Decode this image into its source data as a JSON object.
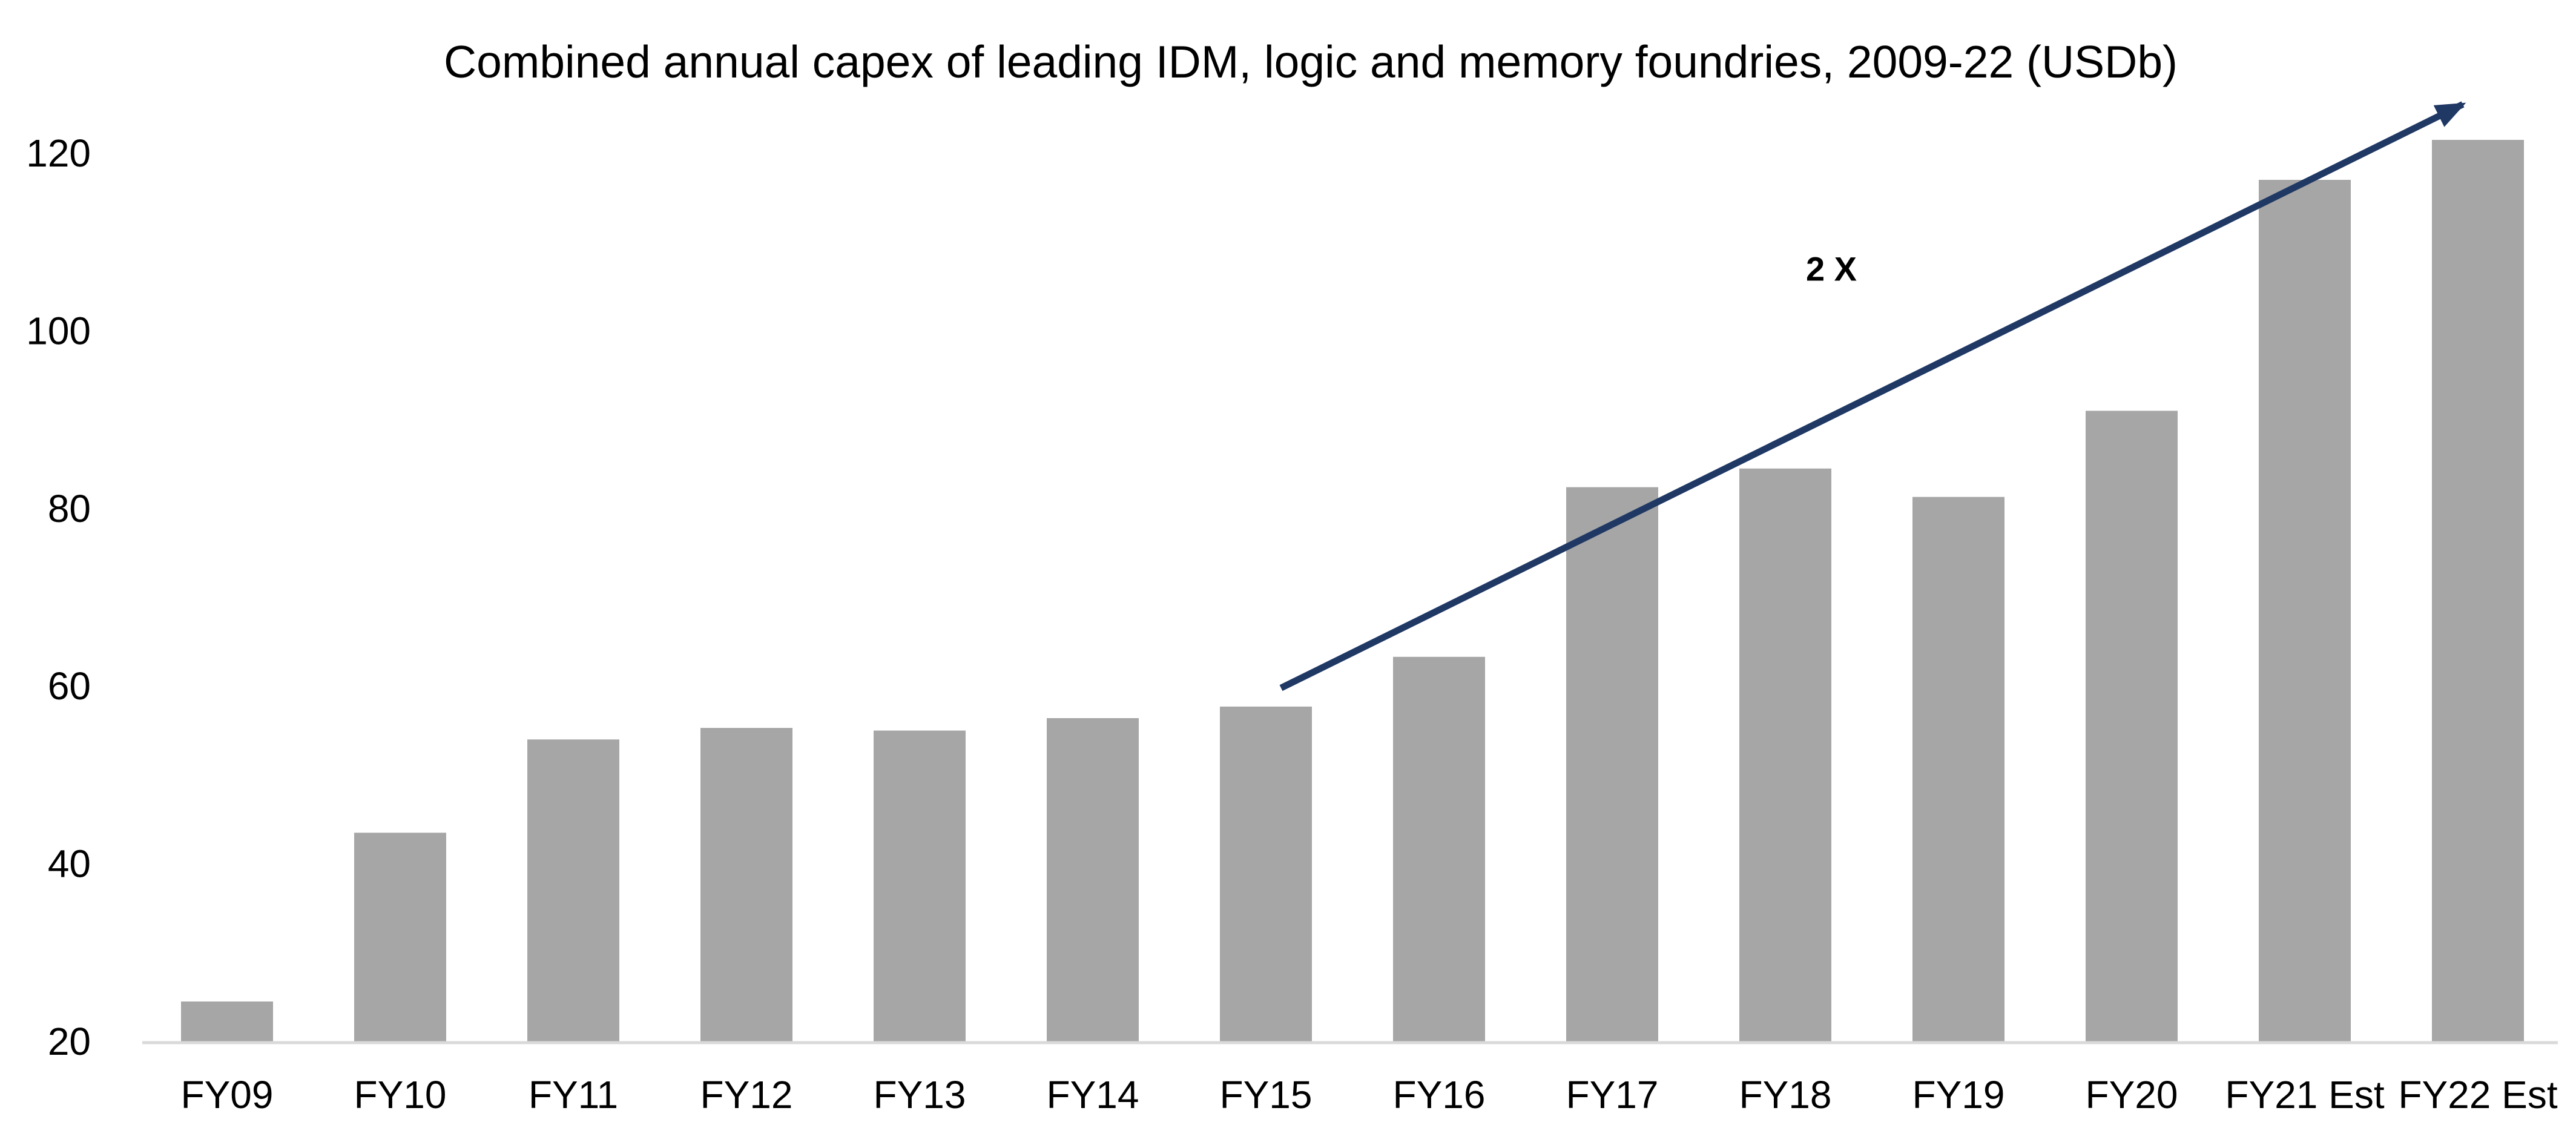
{
  "chart_data": {
    "type": "bar",
    "title": "Combined annual capex of leading IDM, logic and memory foundries, 2009-22 (USDb)",
    "xlabel": "",
    "ylabel": "",
    "categories": [
      "FY09",
      "FY10",
      "FY11",
      "FY12",
      "FY13",
      "FY14",
      "FY15",
      "FY16",
      "FY17",
      "FY18",
      "FY19",
      "FY20",
      "FY21 Est",
      "FY22 Est"
    ],
    "values": [
      24.5,
      43.5,
      54,
      55.3,
      55,
      56.4,
      57.7,
      63.3,
      82.4,
      84.5,
      81.3,
      91,
      117,
      121.5
    ],
    "ylim": [
      20,
      128
    ],
    "yticks": [
      20,
      40,
      60,
      80,
      100,
      120
    ],
    "grid": false,
    "legend": "none",
    "bar_color": "#a6a6a6",
    "axis_color": "#d9d9d9",
    "annotation": {
      "text": "2 X",
      "arrow_color": "#1f3864",
      "arrow_from": {
        "category": "FY15",
        "value": 60
      },
      "arrow_to": {
        "category": "FY22 Est",
        "value": 125.5
      },
      "label_at": {
        "category": "FY19",
        "value": 107
      }
    }
  }
}
